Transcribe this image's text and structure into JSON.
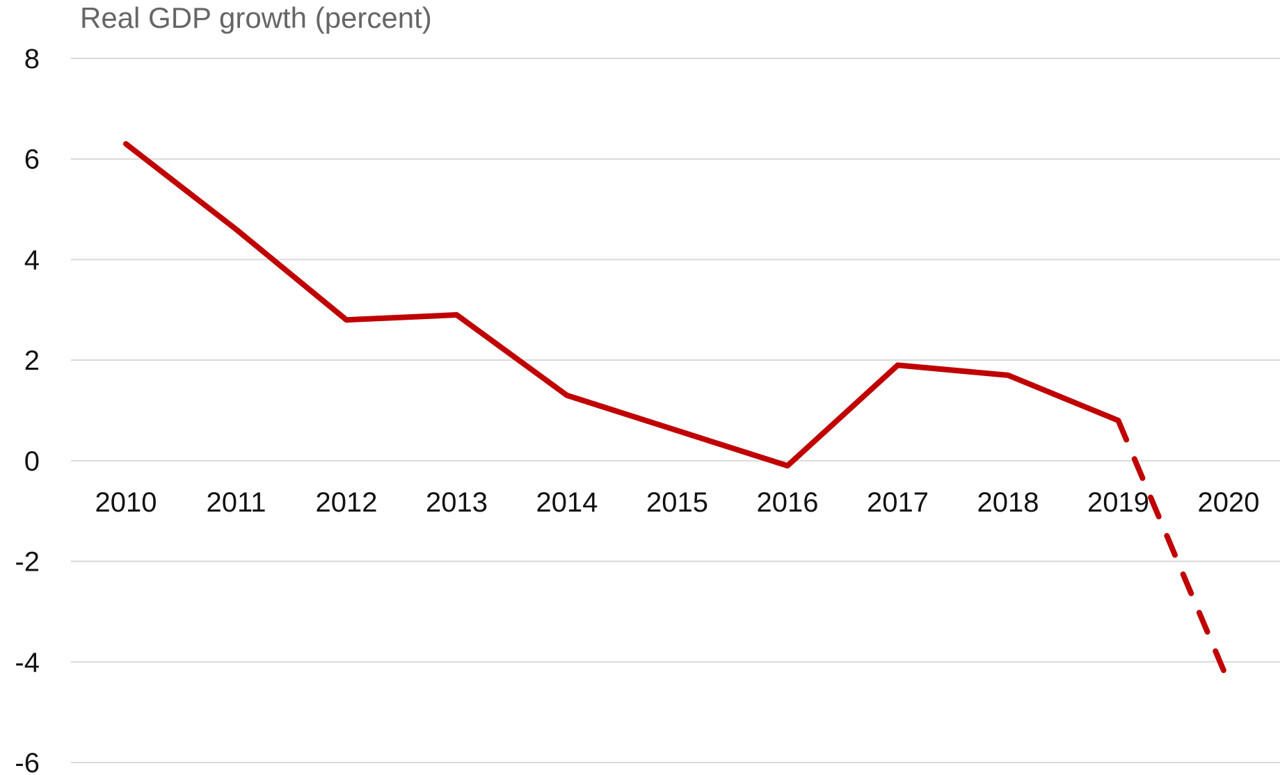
{
  "chart_data": {
    "type": "line",
    "title": "Real GDP growth (percent)",
    "xlabel": "",
    "ylabel": "",
    "categories": [
      "2010",
      "2011",
      "2012",
      "2013",
      "2014",
      "2015",
      "2016",
      "2017",
      "2018",
      "2019",
      "2020"
    ],
    "series": [
      {
        "values": [
          6.3,
          4.6,
          2.8,
          2.9,
          1.3,
          0.6,
          -0.1,
          1.9,
          1.7,
          0.8,
          -4.4
        ],
        "color": "#c00000",
        "style_note": "solid through 2019, dashed 2019-2020 (projection)"
      }
    ],
    "ylim": [
      -6,
      8
    ],
    "yticks": [
      8,
      6,
      4,
      2,
      0,
      -2,
      -4,
      -6
    ],
    "grid": true,
    "legend": "none"
  }
}
